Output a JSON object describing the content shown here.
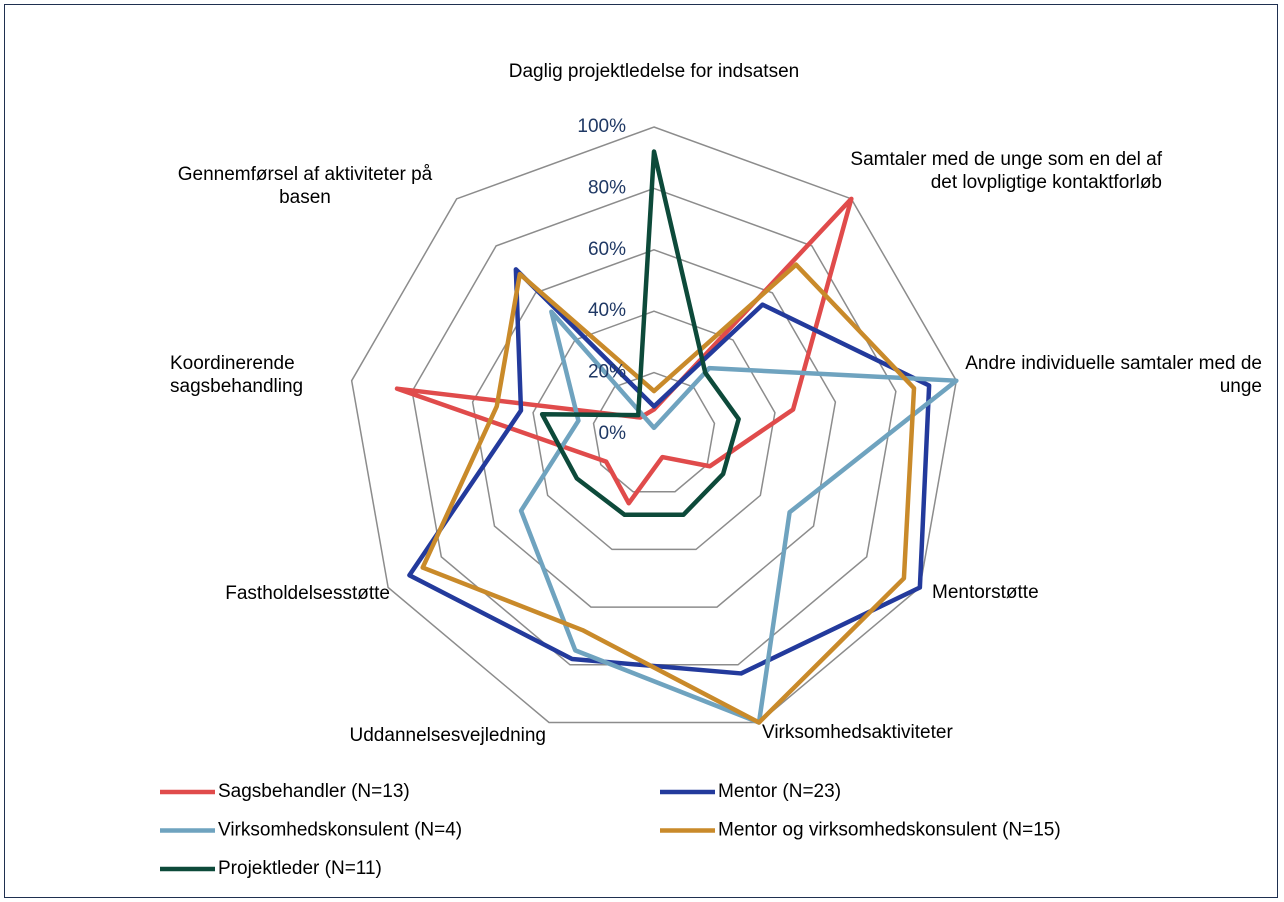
{
  "chart_data": {
    "type": "radar",
    "categories": [
      "Daglig projektledelse for indsatsen",
      "Samtaler med de unge som en del af det lovpligtige kontaktforløb",
      "Andre individuelle samtaler med de unge",
      "Mentorstøtte",
      "Virksomhedsaktiviteter",
      "Uddannelsesvejledning",
      "Fastholdelsesstøtte",
      "Koordinerende sagsbehandling",
      "Gennemførsel af aktiviteter på basen"
    ],
    "rlim": [
      0,
      100
    ],
    "rticks": [
      {
        "value": 0,
        "label": "0%"
      },
      {
        "value": 20,
        "label": "20%"
      },
      {
        "value": 40,
        "label": "40%"
      },
      {
        "value": 60,
        "label": "60%"
      },
      {
        "value": 80,
        "label": "80%"
      },
      {
        "value": 100,
        "label": "100%"
      }
    ],
    "grid": true,
    "series": [
      {
        "name": "Sagsbehandler (N=13)",
        "color": "#e04b4b",
        "values": [
          8,
          100,
          46,
          21,
          8,
          24,
          18,
          85,
          7
        ]
      },
      {
        "name": "Mentor (N=23)",
        "color": "#233a9c",
        "values": [
          9,
          55,
          91,
          100,
          83,
          78,
          92,
          44,
          70
        ]
      },
      {
        "name": "Virksomhedskonsulent (N=4)",
        "color": "#6fa3bf",
        "values": [
          2,
          28,
          100,
          51,
          100,
          75,
          50,
          25,
          52
        ]
      },
      {
        "name": "Mentor og virksomhedskonsulent (N=15)",
        "color": "#c98a2a",
        "values": [
          14,
          72,
          86,
          94,
          100,
          68,
          87,
          52,
          68
        ]
      },
      {
        "name": "Projektleder (N=11)",
        "color": "#0d4a3a",
        "values": [
          92,
          26,
          28,
          26,
          28,
          28,
          29,
          37,
          8
        ]
      }
    ]
  }
}
